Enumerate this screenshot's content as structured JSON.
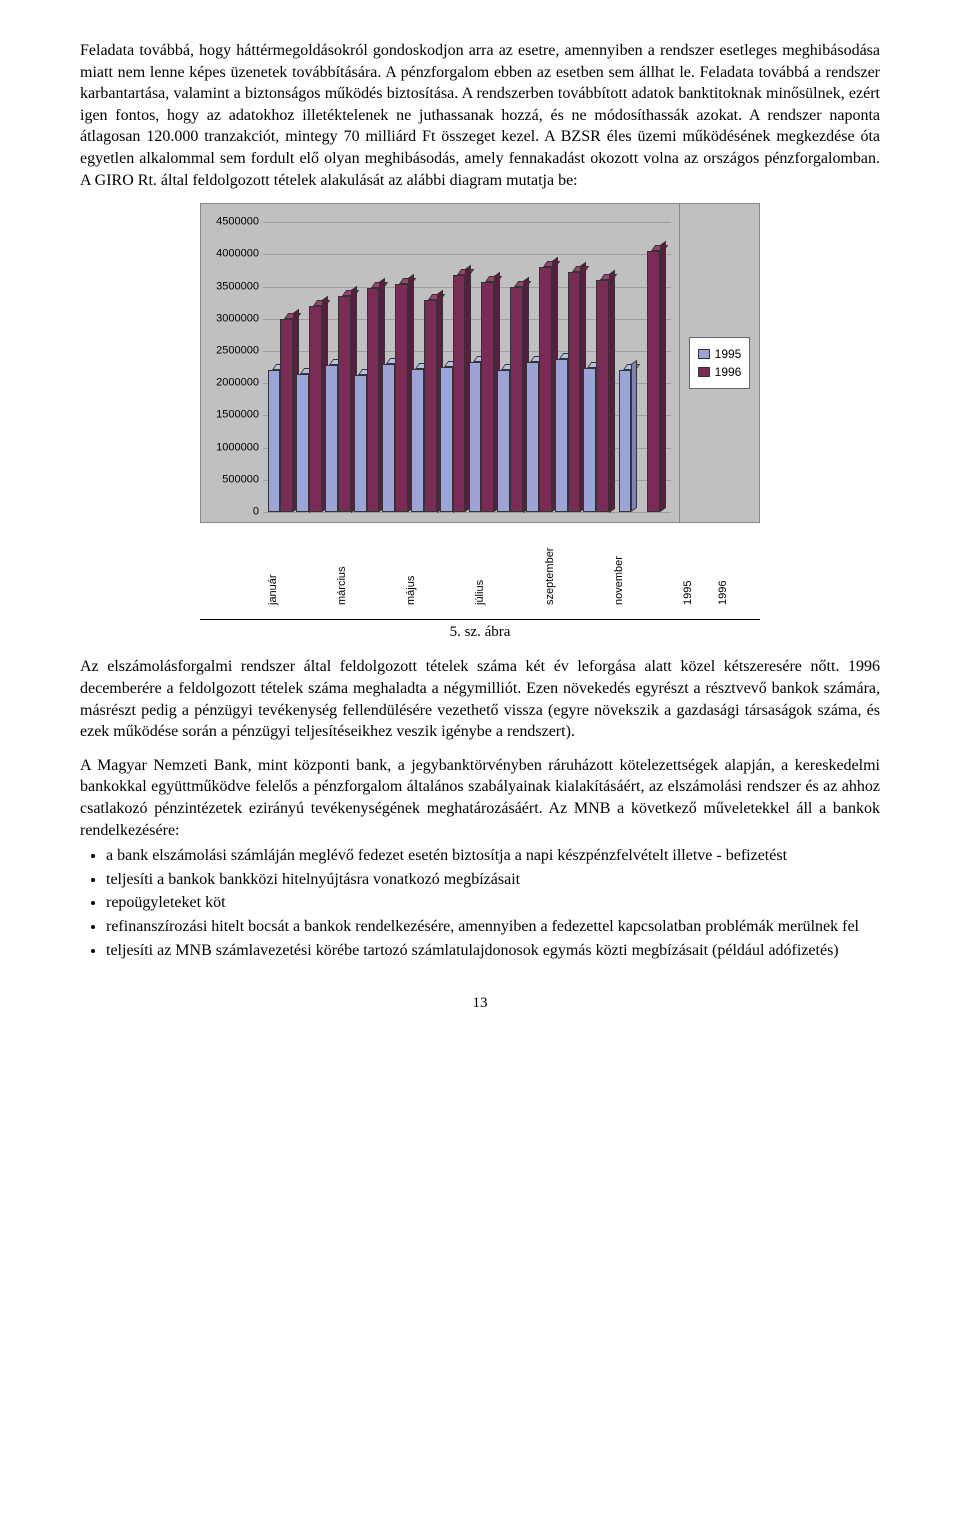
{
  "para1": "Feladata továbbá, hogy háttérmegoldásokról gondoskodjon arra az esetre, amennyiben a rendszer esetleges meghibásodása miatt nem lenne képes üzenetek továbbítására. A pénzforgalom ebben az esetben sem állhat le. Feladata továbbá a rendszer karbantartása, valamint a biztonságos működés biztosítása. A rendszerben továbbított adatok banktitoknak minősülnek, ezért igen fontos, hogy az adatokhoz illetéktelenek ne juthassanak hozzá, és ne módosíthassák azokat. A rendszer naponta átlagosan 120.000 tranzakciót, mintegy 70 milliárd Ft összeget kezel. A BZSR éles üzemi működésének megkezdése óta egyetlen alkalommal sem fordult elő olyan meghibásodás, amely fennakadást okozott volna az országos pénzforgalomban. A GIRO Rt. által feldolgozott tételek alakulását az alábbi diagram mutatja be:",
  "chart": {
    "type": "bar",
    "ylim": [
      0,
      4500000
    ],
    "ytick_step": 500000,
    "yticks": [
      "0",
      "500000",
      "1000000",
      "1500000",
      "2000000",
      "2500000",
      "3000000",
      "3500000",
      "4000000",
      "4500000"
    ],
    "background_color": "#c0c0c0",
    "grid_color": "#9e9e9e",
    "categories": [
      "január",
      "",
      "március",
      "",
      "május",
      "",
      "július",
      "",
      "szeptember",
      "",
      "november",
      "",
      "1995",
      "1996"
    ],
    "series": [
      {
        "name": "1995",
        "color": "#9aa4d6",
        "values": [
          2200000,
          2150000,
          2280000,
          2130000,
          2300000,
          2220000,
          2260000,
          2330000,
          2210000,
          2330000,
          2380000,
          2240000,
          2200000,
          null
        ]
      },
      {
        "name": "1996",
        "color": "#7a2b56",
        "values": [
          3000000,
          3200000,
          3360000,
          3480000,
          3540000,
          3300000,
          3680000,
          3570000,
          3500000,
          3800000,
          3720000,
          3610000,
          null,
          4050000
        ]
      }
    ],
    "legend": [
      "1995",
      "1996"
    ],
    "label_fontsize": 11
  },
  "caption": "5. sz. ábra",
  "para2": "Az elszámolásforgalmi rendszer által feldolgozott tételek száma két év leforgása alatt közel kétszeresére nőtt. 1996 decemberére a feldolgozott tételek száma meghaladta a négymilliót. Ezen növekedés egyrészt a résztvevő bankok számára, másrészt pedig a pénzügyi tevékenység fellendülésére vezethető vissza (egyre növekszik a gazdasági társaságok száma, és ezek működése során a pénzügyi teljesítéseikhez veszik igénybe a rendszert).",
  "para3": "A Magyar Nemzeti Bank, mint központi bank, a jegybanktörvényben ráruházott kötelezettségek alapján, a kereskedelmi bankokkal együttműködve felelős a pénzforgalom általános szabályainak kialakításáért, az elszámolási rendszer és az ahhoz csatlakozó pénzintézetek ezirányú tevékenységének meghatározásáért. Az MNB a következő műveletekkel áll a bankok rendelkezésére:",
  "bullets": [
    "a bank elszámolási számláján meglévő fedezet esetén biztosítja a napi készpénzfelvételt illetve - befizetést",
    "teljesíti a bankok bankközi hitelnyújtásra vonatkozó megbízásait",
    "repoügyleteket köt",
    "refinanszírozási hitelt bocsát a bankok rendelkezésére, amennyiben a fedezettel kapcsolatban problémák merülnek fel",
    "teljesíti az MNB számlavezetési körébe tartozó számlatulajdonosok egymás közti megbízásait (például adófizetés)"
  ],
  "page_number": "13"
}
